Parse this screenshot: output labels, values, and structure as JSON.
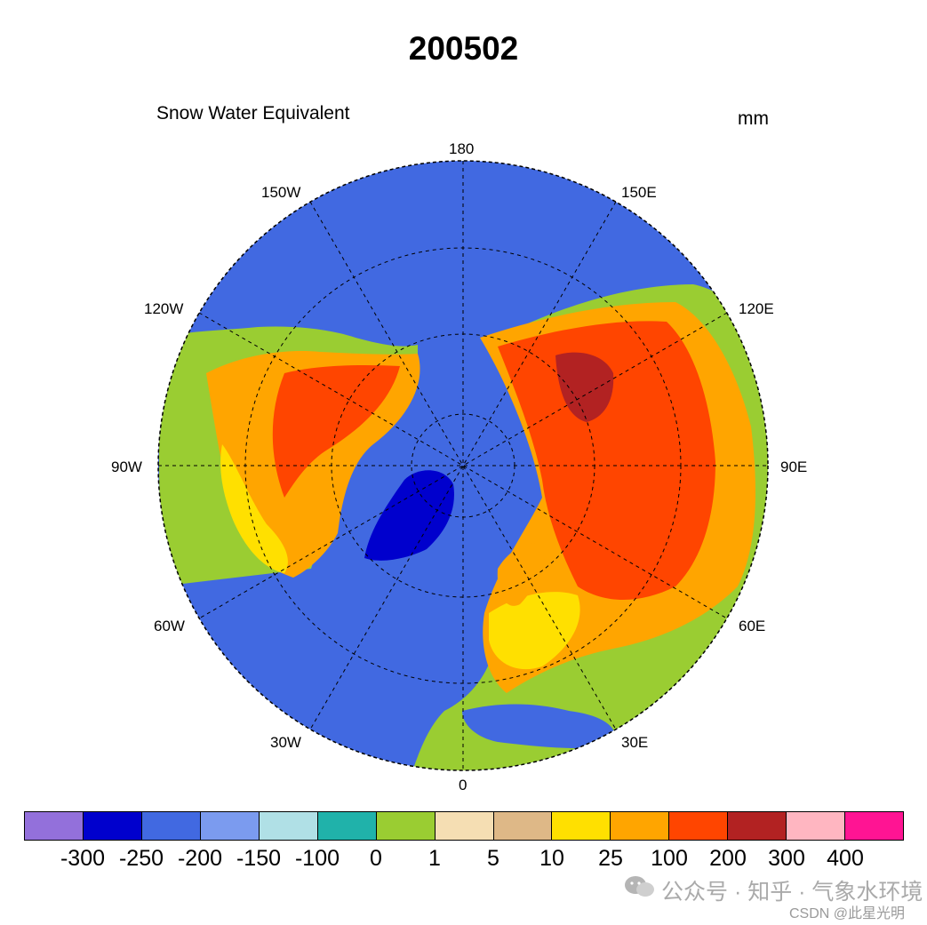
{
  "title": "200502",
  "subtitle": "Snow Water Equivalent",
  "units": "mm",
  "lon_labels": {
    "180": "180",
    "150E": "150E",
    "120E": "120E",
    "90E": "90E",
    "60E": "60E",
    "30E": "30E",
    "0": "0",
    "30W": "30W",
    "60W": "60W",
    "90W": "90W",
    "120W": "120W",
    "150W": "150W"
  },
  "colorbar": {
    "colors": [
      "#9370db",
      "#0000cd",
      "#4169e1",
      "#7b9bef",
      "#b0e0e6",
      "#20b2aa",
      "#9acd32",
      "#f5deb3",
      "#deb887",
      "#ffe000",
      "#ffa500",
      "#ff4500",
      "#b22222",
      "#ffb6c1",
      "#ff1493"
    ],
    "labels": [
      "-300",
      "-250",
      "-200",
      "-150",
      "-100",
      "0",
      "1",
      "5",
      "10",
      "25",
      "100",
      "200",
      "300",
      "400"
    ]
  },
  "watermark": {
    "line1": "公众号 · 知乎 · 气象水环境",
    "line2": "CSDN @此星光明"
  }
}
